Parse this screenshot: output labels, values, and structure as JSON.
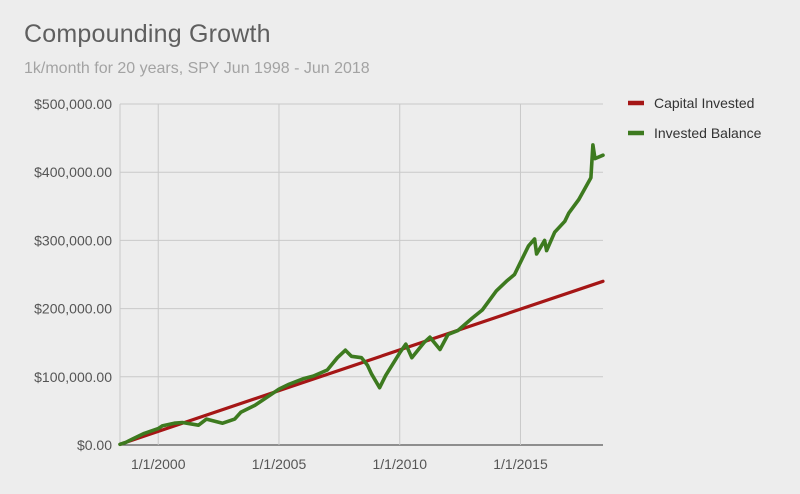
{
  "chart_data": {
    "type": "line",
    "title": "Compounding Growth",
    "subtitle": "1k/month for 20 years, SPY Jun 1998 - Jun 2018",
    "xlabel": "",
    "ylabel": "",
    "x_range": [
      "1998-06",
      "2018-06"
    ],
    "ylim": [
      0,
      500000
    ],
    "y_ticks": [
      0,
      100000,
      200000,
      300000,
      400000,
      500000
    ],
    "y_tick_labels": [
      "$0.00",
      "$100,000.00",
      "$200,000.00",
      "$300,000.00",
      "$400,000.00",
      "$500,000.00"
    ],
    "x_ticks": [
      "2000-01",
      "2005-01",
      "2010-01",
      "2015-01"
    ],
    "x_tick_labels": [
      "1/1/2000",
      "1/1/2005",
      "1/1/2010",
      "1/1/2015"
    ],
    "grid": true,
    "legend": "right-top",
    "series": [
      {
        "name": "Capital Invested",
        "color": "#a51616",
        "x": [
          "1998-06",
          "2018-06"
        ],
        "values": [
          1000,
          240000
        ]
      },
      {
        "name": "Invested Balance",
        "color": "#3d7a1f",
        "x": [
          "1998-06",
          "1998-09",
          "1999-01",
          "1999-06",
          "2000-01",
          "2000-03",
          "2000-09",
          "2001-01",
          "2001-09",
          "2002-01",
          "2002-09",
          "2003-03",
          "2003-06",
          "2004-01",
          "2004-06",
          "2005-01",
          "2005-06",
          "2006-01",
          "2006-06",
          "2007-01",
          "2007-06",
          "2007-10",
          "2008-01",
          "2008-06",
          "2008-09",
          "2008-11",
          "2009-03",
          "2009-06",
          "2010-01",
          "2010-04",
          "2010-07",
          "2011-01",
          "2011-04",
          "2011-09",
          "2012-01",
          "2012-06",
          "2013-01",
          "2013-06",
          "2014-01",
          "2014-06",
          "2014-10",
          "2015-01",
          "2015-05",
          "2015-08",
          "2015-09",
          "2016-01",
          "2016-02",
          "2016-06",
          "2016-11",
          "2017-01",
          "2017-06",
          "2017-12",
          "2018-01",
          "2018-02",
          "2018-06"
        ],
        "values": [
          1000,
          4000,
          10000,
          17000,
          24000,
          28000,
          32000,
          33000,
          29000,
          38000,
          32000,
          38000,
          48000,
          58000,
          68000,
          82000,
          89000,
          97000,
          101000,
          110000,
          128000,
          139000,
          130000,
          128000,
          117000,
          104000,
          84000,
          102000,
          135000,
          148000,
          128000,
          150000,
          158000,
          140000,
          162000,
          168000,
          186000,
          198000,
          226000,
          240000,
          250000,
          268000,
          292000,
          302000,
          280000,
          300000,
          285000,
          312000,
          328000,
          340000,
          360000,
          392000,
          440000,
          420000,
          425000
        ]
      }
    ]
  }
}
